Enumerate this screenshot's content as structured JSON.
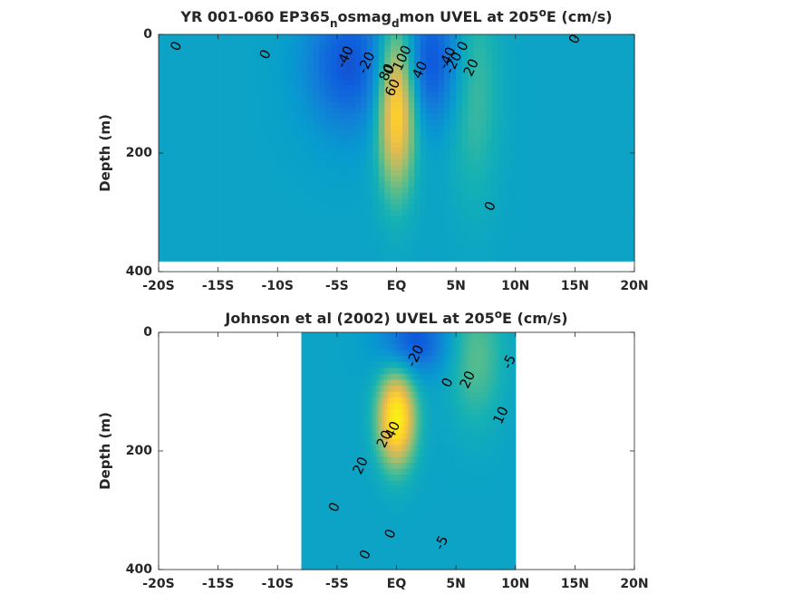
{
  "chart_data": [
    {
      "type": "heatmap",
      "title_parts": [
        "YR 001-060 EP365",
        "n",
        "osmag",
        "d",
        "mon UVEL at 205",
        "o",
        "E (cm/s)"
      ],
      "xlabel": "",
      "ylabel": "Depth (m)",
      "xlim": [
        -20,
        20
      ],
      "ylim": [
        0,
        400
      ],
      "x_ticks": [
        -20,
        -15,
        -10,
        -5,
        0,
        5,
        10,
        15,
        20
      ],
      "x_tick_labels": [
        "-20S",
        "-15S",
        "-10S",
        "-5S",
        "EQ",
        "5N",
        "10N",
        "15N",
        "20N"
      ],
      "y_ticks": [
        0,
        200,
        400
      ],
      "y_tick_labels": [
        "0",
        "200",
        "400"
      ],
      "data_extent": {
        "lat": [
          -20,
          20
        ],
        "depth": [
          0,
          382
        ]
      },
      "features": [
        {
          "kind": "core",
          "name": "undercurrent",
          "lat": 0,
          "depth": 120,
          "lat_width": 1.1,
          "depth_width": 95,
          "value": 100
        },
        {
          "kind": "core",
          "name": "surface westward south",
          "lat": -4,
          "depth": 50,
          "lat_width": 2.6,
          "depth_width": 80,
          "value": -45
        },
        {
          "kind": "core",
          "name": "surface westward north",
          "lat": 3,
          "depth": 45,
          "lat_width": 1.8,
          "depth_width": 75,
          "value": -45
        },
        {
          "kind": "core",
          "name": "countercurrent",
          "lat": 6.5,
          "depth": 90,
          "lat_width": 1.5,
          "depth_width": 130,
          "value": 25
        }
      ],
      "contour_labels": [
        {
          "text": "0",
          "lat": -18.5,
          "depth": 20
        },
        {
          "text": "0",
          "lat": -11,
          "depth": 34
        },
        {
          "text": "-40",
          "lat": -4.3,
          "depth": 38
        },
        {
          "text": "-20",
          "lat": -2.5,
          "depth": 48
        },
        {
          "text": "0",
          "lat": -0.6,
          "depth": 60
        },
        {
          "text": "100",
          "lat": 0.5,
          "depth": 40
        },
        {
          "text": "80",
          "lat": -0.8,
          "depth": 64
        },
        {
          "text": "60",
          "lat": -0.3,
          "depth": 90
        },
        {
          "text": "40",
          "lat": 2,
          "depth": 60
        },
        {
          "text": "-40",
          "lat": 4.3,
          "depth": 40
        },
        {
          "text": "-20",
          "lat": 4.8,
          "depth": 48
        },
        {
          "text": "0",
          "lat": 5.6,
          "depth": 20
        },
        {
          "text": "20",
          "lat": 6.3,
          "depth": 56
        },
        {
          "text": "0",
          "lat": 7.9,
          "depth": 290
        },
        {
          "text": "0",
          "lat": 15,
          "depth": 8
        }
      ]
    },
    {
      "type": "heatmap",
      "title_parts": [
        "Johnson et al (2002) UVEL at 205",
        "o",
        "E (cm/s)"
      ],
      "xlabel": "",
      "ylabel": "Depth (m)",
      "xlim": [
        -20,
        20
      ],
      "ylim": [
        0,
        400
      ],
      "x_ticks": [
        -20,
        -15,
        -10,
        -5,
        0,
        5,
        10,
        15,
        20
      ],
      "x_tick_labels": [
        "-20S",
        "-15S",
        "-10S",
        "-5S",
        "EQ",
        "5N",
        "10N",
        "15N",
        "20N"
      ],
      "y_ticks": [
        0,
        200,
        400
      ],
      "y_tick_labels": [
        "0",
        "200",
        "400"
      ],
      "data_extent": {
        "lat": [
          -8,
          10
        ],
        "depth": [
          0,
          400
        ]
      },
      "features": [
        {
          "kind": "core",
          "name": "undercurrent",
          "lat": 0,
          "depth": 145,
          "lat_width": 1.1,
          "depth_width": 55,
          "value": 110
        },
        {
          "kind": "core",
          "name": "surface westward",
          "lat": 1.5,
          "depth": 15,
          "lat_width": 2,
          "depth_width": 40,
          "value": -45
        },
        {
          "kind": "core",
          "name": "countercurrent",
          "lat": 6.7,
          "depth": 40,
          "lat_width": 1.6,
          "depth_width": 80,
          "value": 30
        }
      ],
      "contour_labels": [
        {
          "text": "-20",
          "lat": 1.6,
          "depth": 40
        },
        {
          "text": "0",
          "lat": 4.3,
          "depth": 85
        },
        {
          "text": "20",
          "lat": 6,
          "depth": 80
        },
        {
          "text": "-5",
          "lat": 9.5,
          "depth": 50
        },
        {
          "text": "40",
          "lat": -0.3,
          "depth": 165
        },
        {
          "text": "20",
          "lat": -1,
          "depth": 180
        },
        {
          "text": "10",
          "lat": 8.8,
          "depth": 140
        },
        {
          "text": "20",
          "lat": -3,
          "depth": 225
        },
        {
          "text": "0",
          "lat": -5.2,
          "depth": 295
        },
        {
          "text": "0",
          "lat": -0.5,
          "depth": 340
        },
        {
          "text": "-5",
          "lat": 3.8,
          "depth": 355
        },
        {
          "text": "0",
          "lat": -2.6,
          "depth": 375
        }
      ]
    }
  ]
}
